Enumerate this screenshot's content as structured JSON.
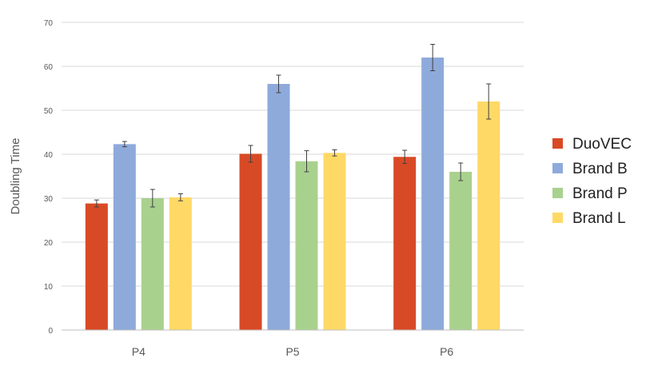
{
  "chart_data": {
    "type": "bar",
    "title": "",
    "xlabel": "",
    "ylabel": "Doubling Time",
    "ylim": [
      0,
      70
    ],
    "yticks": [
      0,
      10,
      20,
      30,
      40,
      50,
      60,
      70
    ],
    "grid": true,
    "legend_position": "right",
    "categories": [
      "P4",
      "P5",
      "P6"
    ],
    "series": [
      {
        "name": "DuoVEC",
        "color": "#d84a25",
        "values": [
          28.8,
          40.1,
          39.4
        ],
        "errors": [
          0.8,
          1.9,
          1.5
        ]
      },
      {
        "name": "Brand B",
        "color": "#8eaadb",
        "values": [
          42.3,
          56.0,
          62.0
        ],
        "errors": [
          0.6,
          2.0,
          3.0
        ]
      },
      {
        "name": "Brand P",
        "color": "#a9d18e",
        "values": [
          30.0,
          38.4,
          36.0
        ],
        "errors": [
          2.0,
          2.4,
          2.0
        ]
      },
      {
        "name": "Brand L",
        "color": "#ffd966",
        "values": [
          30.2,
          40.3,
          52.0
        ],
        "errors": [
          0.8,
          0.7,
          4.0
        ]
      }
    ]
  }
}
